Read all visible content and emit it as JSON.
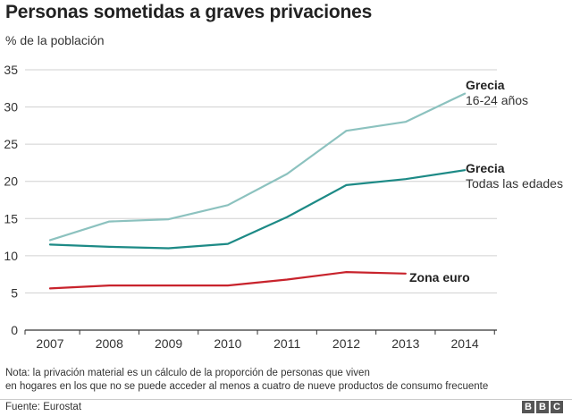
{
  "title": "Personas sometidas a graves privaciones",
  "unit_label": "% de la población",
  "note_lines": [
    "Nota: la privación material es un cálculo de la proporción de personas que viven",
    "en hogares en los que no se puede acceder al menos a cuatro de nueve productos de consumo frecuente"
  ],
  "source": "Fuente: Eurostat",
  "logo": [
    "B",
    "B",
    "C"
  ],
  "chart_data": {
    "type": "line",
    "title": "Personas sometidas a graves privaciones",
    "ylabel": "% de la población",
    "xlabel": "",
    "x": [
      2007,
      2008,
      2009,
      2010,
      2011,
      2012,
      2013,
      2014
    ],
    "ylim": [
      0,
      35
    ],
    "yticks": [
      0,
      5,
      10,
      15,
      20,
      25,
      30,
      35
    ],
    "grid": true,
    "series": [
      {
        "key": "grecia_16_24",
        "label_bold": "Grecia",
        "label_sub": "16-24 años",
        "color": "#8cc2bf",
        "values": [
          12.1,
          14.6,
          14.9,
          16.8,
          21.0,
          26.8,
          28.0,
          31.8
        ]
      },
      {
        "key": "grecia_todas",
        "label_bold": "Grecia",
        "label_sub": "Todas las edades",
        "color": "#1d8a86",
        "values": [
          11.5,
          11.2,
          11.0,
          11.6,
          15.2,
          19.5,
          20.3,
          21.5
        ]
      },
      {
        "key": "zona_euro",
        "label_bold": "Zona  euro",
        "label_sub": "",
        "color": "#c8232c",
        "values": [
          5.6,
          6.0,
          6.0,
          6.0,
          6.8,
          7.8,
          7.6,
          null
        ]
      }
    ]
  }
}
